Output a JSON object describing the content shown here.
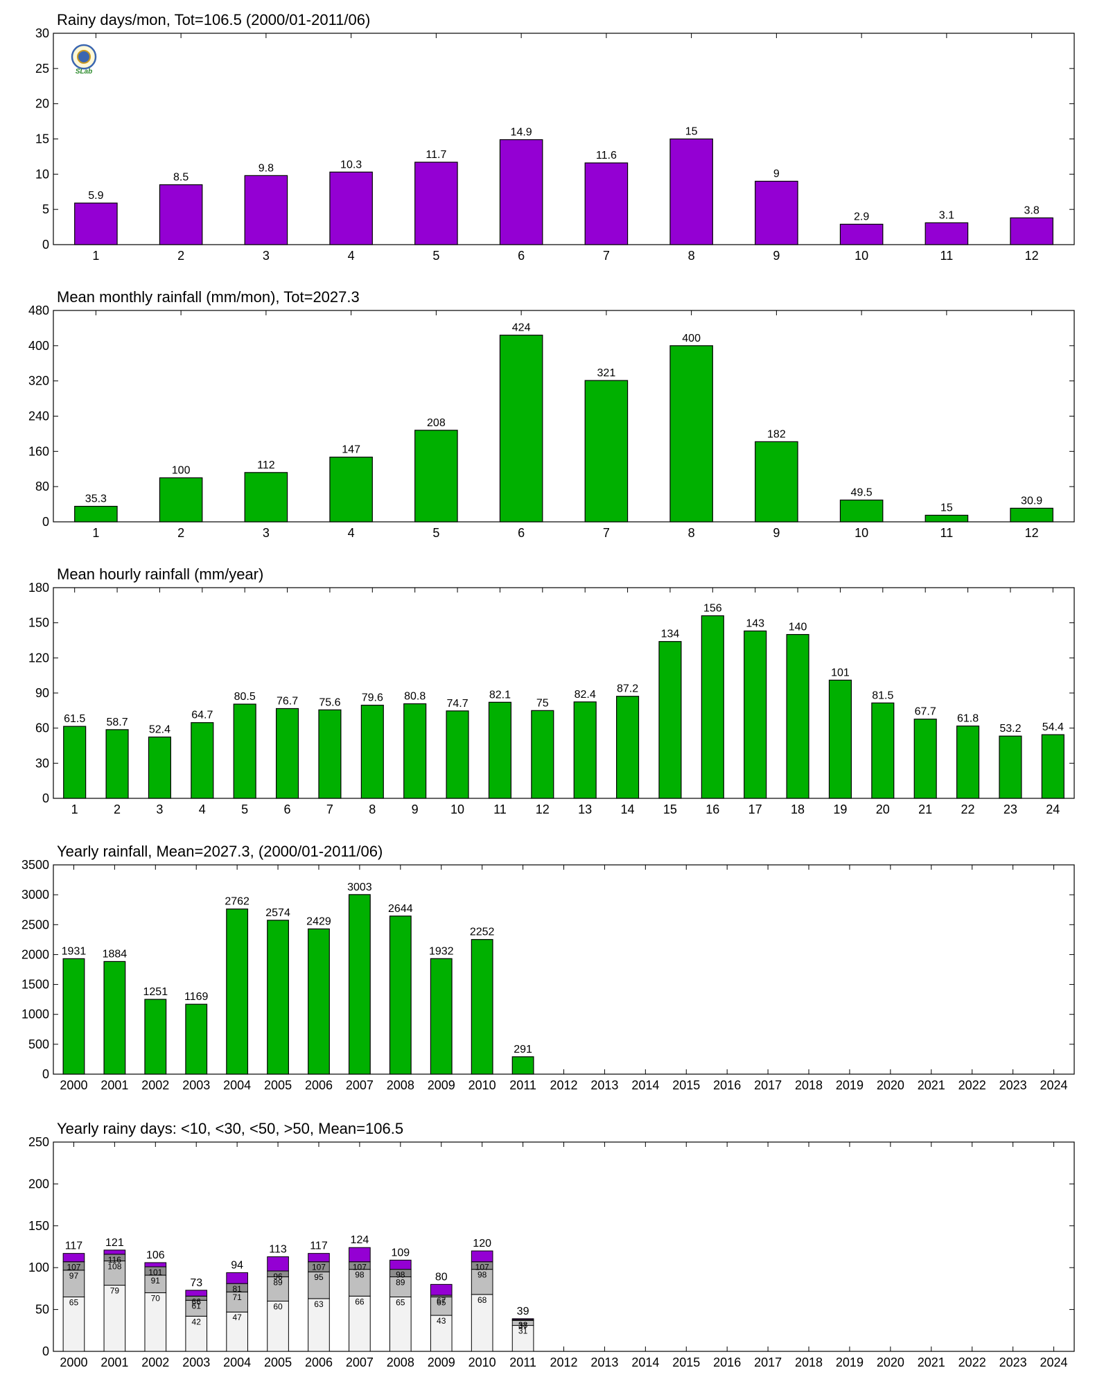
{
  "logo": {
    "text": "SLab"
  },
  "chart_data": [
    {
      "type": "bar",
      "title": "Rainy days/mon, Tot=106.5 (2000/01-2011/06)",
      "color": "#9400d3",
      "categories": [
        "1",
        "2",
        "3",
        "4",
        "5",
        "6",
        "7",
        "8",
        "9",
        "10",
        "11",
        "12"
      ],
      "values": [
        5.9,
        8.5,
        9.8,
        10.3,
        11.7,
        14.9,
        11.6,
        15,
        9,
        2.9,
        3.1,
        3.8
      ],
      "ylim": [
        0,
        30
      ],
      "yticks": [
        0,
        5,
        10,
        15,
        20,
        25,
        30
      ]
    },
    {
      "type": "bar",
      "title": "Mean monthly rainfall (mm/mon), Tot=2027.3",
      "color": "#00b000",
      "categories": [
        "1",
        "2",
        "3",
        "4",
        "5",
        "6",
        "7",
        "8",
        "9",
        "10",
        "11",
        "12"
      ],
      "values": [
        35.3,
        100,
        112,
        147,
        208,
        424,
        321,
        400,
        182,
        49.5,
        15,
        30.9
      ],
      "ylim": [
        0,
        480
      ],
      "yticks": [
        0,
        80,
        160,
        240,
        320,
        400,
        480
      ]
    },
    {
      "type": "bar",
      "title": "Mean hourly rainfall (mm/year)",
      "color": "#00b000",
      "categories": [
        "1",
        "2",
        "3",
        "4",
        "5",
        "6",
        "7",
        "8",
        "9",
        "10",
        "11",
        "12",
        "13",
        "14",
        "15",
        "16",
        "17",
        "18",
        "19",
        "20",
        "21",
        "22",
        "23",
        "24"
      ],
      "values": [
        61.5,
        58.7,
        52.4,
        64.7,
        80.5,
        76.7,
        75.6,
        79.6,
        80.8,
        74.7,
        82.1,
        75,
        82.4,
        87.2,
        134,
        156,
        143,
        140,
        101,
        81.5,
        67.7,
        61.8,
        53.2,
        54.4
      ],
      "ylim": [
        0,
        180
      ],
      "yticks": [
        0,
        30,
        60,
        90,
        120,
        150,
        180
      ]
    },
    {
      "type": "bar",
      "title": "Yearly rainfall, Mean=2027.3, (2000/01-2011/06)",
      "color": "#00b000",
      "categories": [
        "2000",
        "2001",
        "2002",
        "2003",
        "2004",
        "2005",
        "2006",
        "2007",
        "2008",
        "2009",
        "2010",
        "2011",
        "2012",
        "2013",
        "2014",
        "2015",
        "2016",
        "2017",
        "2018",
        "2019",
        "2020",
        "2021",
        "2022",
        "2023",
        "2024"
      ],
      "values": [
        1931,
        1884,
        1251,
        1169,
        2762,
        2574,
        2429,
        3003,
        2644,
        1932,
        2252,
        291,
        null,
        null,
        null,
        null,
        null,
        null,
        null,
        null,
        null,
        null,
        null,
        null,
        null
      ],
      "ylim": [
        0,
        3500
      ],
      "yticks": [
        0,
        500,
        1000,
        1500,
        2000,
        2500,
        3000,
        3500
      ]
    },
    {
      "type": "bar",
      "stacked": true,
      "title": "Yearly rainy days: <10, <30, <50, >50, Mean=106.5",
      "categories": [
        "2000",
        "2001",
        "2002",
        "2003",
        "2004",
        "2005",
        "2006",
        "2007",
        "2008",
        "2009",
        "2010",
        "2011",
        "2012",
        "2013",
        "2014",
        "2015",
        "2016",
        "2017",
        "2018",
        "2019",
        "2020",
        "2021",
        "2022",
        "2023",
        "2024"
      ],
      "cumulative": [
        [
          65,
          97,
          107,
          117
        ],
        [
          79,
          108,
          116,
          121
        ],
        [
          70,
          91,
          101,
          106
        ],
        [
          42,
          61,
          66,
          73
        ],
        [
          47,
          71,
          81,
          94
        ],
        [
          60,
          89,
          96,
          113
        ],
        [
          63,
          95,
          107,
          117
        ],
        [
          66,
          98,
          107,
          124
        ],
        [
          65,
          89,
          98,
          109
        ],
        [
          43,
          65,
          67,
          80
        ],
        [
          68,
          98,
          107,
          120
        ],
        [
          31,
          37,
          38,
          39
        ],
        null,
        null,
        null,
        null,
        null,
        null,
        null,
        null,
        null,
        null,
        null,
        null,
        null
      ],
      "colors": [
        "#f2f2f2",
        "#bfbfbf",
        "#8c8c8c",
        "#9400d3"
      ],
      "ylim": [
        0,
        250
      ],
      "yticks": [
        0,
        50,
        100,
        150,
        200,
        250
      ]
    }
  ]
}
